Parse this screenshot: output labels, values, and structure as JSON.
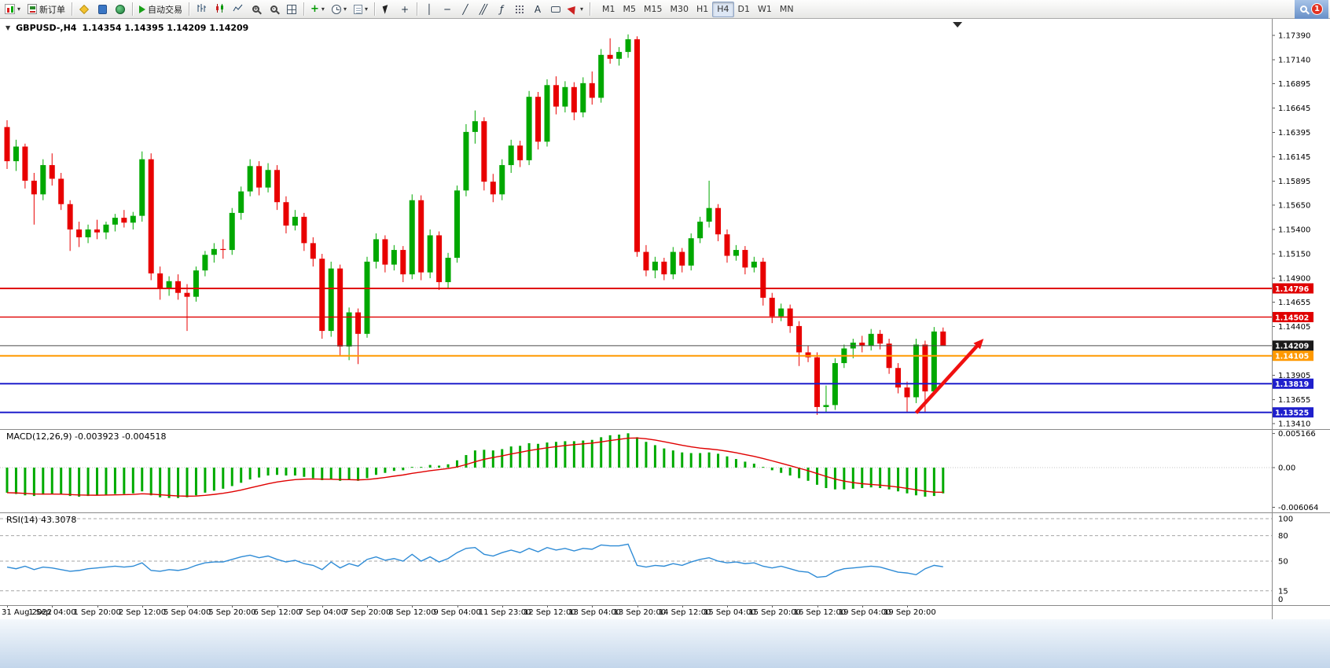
{
  "toolbar": {
    "new_order_label": "新订单",
    "autotrading_label": "自动交易",
    "timeframes": [
      "M1",
      "M5",
      "M15",
      "M30",
      "H1",
      "H4",
      "D1",
      "W1",
      "MN"
    ],
    "active_timeframe": "H4",
    "notification_count": "1",
    "dropdown_glyph": "▾",
    "vline_glyph": "│",
    "hline_glyph": "─",
    "trendline_glyph": "╱",
    "channel_glyph": "╱╱",
    "fibonacci_glyph": "ƒ",
    "crosshair_glyph": "+",
    "text_glyph": "A"
  },
  "chart": {
    "title": "GBPUSD-,H4",
    "ohlc": "1.14354 1.14395 1.14209 1.14209",
    "collapse_glyph": "▼"
  },
  "indicators": {
    "macd_label": "MACD(12,26,9) -0.003923 -0.004518",
    "rsi_label": "RSI(14) 43.3078"
  },
  "chart_data": [
    {
      "type": "candlestick",
      "symbol": "GBPUSD-",
      "timeframe": "H4",
      "current_bar": {
        "open": 1.14354,
        "high": 1.14395,
        "low": 1.14209,
        "close": 1.14209
      },
      "up_color": "#00A800",
      "down_color": "#E80000",
      "y_axis_labels": [
        "1.17390",
        "1.17140",
        "1.16895",
        "1.16645",
        "1.16395",
        "1.16145",
        "1.15895",
        "1.15650",
        "1.15400",
        "1.15150",
        "1.14900",
        "1.14655",
        "1.14405",
        "1.13905",
        "1.13655",
        "1.13410"
      ],
      "price_lines": [
        {
          "label": "1.14796",
          "price": 1.14796,
          "color": "#E00000",
          "width": 2
        },
        {
          "label": "1.14502",
          "price": 1.14502,
          "color": "#E00000",
          "width": 1.4
        },
        {
          "label": "1.14209",
          "price": 1.14209,
          "color": "#4a4a4a",
          "width": 1,
          "badge": "#1a1a1a"
        },
        {
          "label": "1.14105",
          "price": 1.14105,
          "color": "#FF9900",
          "width": 2
        },
        {
          "label": "1.13819",
          "price": 1.13819,
          "color": "#1F1FCC",
          "width": 2
        },
        {
          "label": "1.13525",
          "price": 1.13525,
          "color": "#1F1FCC",
          "width": 2
        }
      ],
      "time_axis_labels": [
        "31 Aug 2022",
        "1 Sep 04:00",
        "1 Sep 20:00",
        "2 Sep 12:00",
        "5 Sep 04:00",
        "5 Sep 20:00",
        "6 Sep 12:00",
        "7 Sep 04:00",
        "7 Sep 20:00",
        "8 Sep 12:00",
        "9 Sep 04:00",
        "11 Sep 23:00",
        "12 Sep 12:00",
        "13 Sep 04:00",
        "13 Sep 20:00",
        "14 Sep 12:00",
        "15 Sep 04:00",
        "15 Sep 20:00",
        "16 Sep 12:00",
        "19 Sep 04:00",
        "19 Sep 20:00"
      ],
      "arrow": {
        "from_bar": 101,
        "from_price": 1.1352,
        "to_bar": 108.5,
        "to_price": 1.1428,
        "color": "#F01010"
      },
      "shift_marker_bar": 105.6,
      "candles": [
        [
          1.1645,
          1.1652,
          1.1602,
          1.161
        ],
        [
          1.161,
          1.1632,
          1.16,
          1.1625
        ],
        [
          1.1625,
          1.1628,
          1.1582,
          1.159
        ],
        [
          1.159,
          1.1598,
          1.1545,
          1.1576
        ],
        [
          1.1576,
          1.1612,
          1.157,
          1.1606
        ],
        [
          1.1606,
          1.1618,
          1.1585,
          1.1592
        ],
        [
          1.1592,
          1.1598,
          1.156,
          1.1566
        ],
        [
          1.1566,
          1.157,
          1.1518,
          1.154
        ],
        [
          1.154,
          1.1548,
          1.1522,
          1.1532
        ],
        [
          1.1532,
          1.1545,
          1.1526,
          1.154
        ],
        [
          1.154,
          1.155,
          1.153,
          1.1537
        ],
        [
          1.1537,
          1.1548,
          1.153,
          1.1545
        ],
        [
          1.1545,
          1.1556,
          1.1538,
          1.1552
        ],
        [
          1.1552,
          1.156,
          1.1542,
          1.1547
        ],
        [
          1.1547,
          1.1558,
          1.154,
          1.1554
        ],
        [
          1.1554,
          1.162,
          1.1548,
          1.1612
        ],
        [
          1.1612,
          1.1618,
          1.1488,
          1.1495
        ],
        [
          1.1495,
          1.1502,
          1.1468,
          1.148
        ],
        [
          1.148,
          1.1492,
          1.1472,
          1.1487
        ],
        [
          1.1487,
          1.1494,
          1.1468,
          1.1475
        ],
        [
          1.1475,
          1.1484,
          1.1436,
          1.1471
        ],
        [
          1.1471,
          1.1502,
          1.1466,
          1.1498
        ],
        [
          1.1498,
          1.1518,
          1.1492,
          1.1514
        ],
        [
          1.1514,
          1.1526,
          1.1506,
          1.152
        ],
        [
          1.152,
          1.153,
          1.151,
          1.1519
        ],
        [
          1.1519,
          1.1562,
          1.1514,
          1.1557
        ],
        [
          1.1557,
          1.1584,
          1.155,
          1.1579
        ],
        [
          1.1579,
          1.1612,
          1.1574,
          1.1605
        ],
        [
          1.1605,
          1.161,
          1.1575,
          1.1583
        ],
        [
          1.1583,
          1.1608,
          1.1578,
          1.1601
        ],
        [
          1.1601,
          1.1606,
          1.156,
          1.1568
        ],
        [
          1.1568,
          1.1574,
          1.1536,
          1.1544
        ],
        [
          1.1544,
          1.156,
          1.1539,
          1.1553
        ],
        [
          1.1553,
          1.1557,
          1.1518,
          1.1526
        ],
        [
          1.1526,
          1.1532,
          1.1502,
          1.151
        ],
        [
          1.151,
          1.1515,
          1.1428,
          1.1436
        ],
        [
          1.1436,
          1.1507,
          1.143,
          1.15
        ],
        [
          1.15,
          1.1504,
          1.141,
          1.142
        ],
        [
          1.142,
          1.146,
          1.1406,
          1.1455
        ],
        [
          1.1455,
          1.1459,
          1.1402,
          1.1433
        ],
        [
          1.1433,
          1.1512,
          1.1429,
          1.1507
        ],
        [
          1.1507,
          1.1536,
          1.15,
          1.153
        ],
        [
          1.153,
          1.1534,
          1.1496,
          1.1504
        ],
        [
          1.1504,
          1.1524,
          1.1498,
          1.1519
        ],
        [
          1.1519,
          1.1523,
          1.1486,
          1.1494
        ],
        [
          1.1494,
          1.1576,
          1.1489,
          1.157
        ],
        [
          1.157,
          1.1575,
          1.1488,
          1.1496
        ],
        [
          1.1496,
          1.154,
          1.149,
          1.1534
        ],
        [
          1.1534,
          1.1538,
          1.1478,
          1.1486
        ],
        [
          1.1486,
          1.1516,
          1.148,
          1.1511
        ],
        [
          1.1511,
          1.1585,
          1.1506,
          1.158
        ],
        [
          1.158,
          1.1648,
          1.1574,
          1.164
        ],
        [
          1.164,
          1.1662,
          1.1628,
          1.1651
        ],
        [
          1.1651,
          1.1655,
          1.158,
          1.1589
        ],
        [
          1.1589,
          1.1597,
          1.1568,
          1.1576
        ],
        [
          1.1576,
          1.1612,
          1.157,
          1.1606
        ],
        [
          1.1606,
          1.1632,
          1.1598,
          1.1626
        ],
        [
          1.1626,
          1.1631,
          1.1604,
          1.1611
        ],
        [
          1.1611,
          1.1682,
          1.1606,
          1.1676
        ],
        [
          1.1676,
          1.1681,
          1.1622,
          1.163
        ],
        [
          1.163,
          1.1694,
          1.1625,
          1.1688
        ],
        [
          1.1688,
          1.1697,
          1.1658,
          1.1666
        ],
        [
          1.1666,
          1.1692,
          1.166,
          1.1686
        ],
        [
          1.1686,
          1.1691,
          1.1652,
          1.166
        ],
        [
          1.166,
          1.1696,
          1.1655,
          1.169
        ],
        [
          1.169,
          1.1702,
          1.1668,
          1.1675
        ],
        [
          1.1675,
          1.1725,
          1.167,
          1.1719
        ],
        [
          1.1719,
          1.1736,
          1.171,
          1.1715
        ],
        [
          1.1715,
          1.1727,
          1.1708,
          1.1722
        ],
        [
          1.1722,
          1.174,
          1.1716,
          1.1735
        ],
        [
          1.1735,
          1.1738,
          1.1512,
          1.1517
        ],
        [
          1.1517,
          1.1524,
          1.1492,
          1.1498
        ],
        [
          1.1498,
          1.1512,
          1.149,
          1.1507
        ],
        [
          1.1507,
          1.1511,
          1.1488,
          1.1494
        ],
        [
          1.1494,
          1.1522,
          1.1489,
          1.1517
        ],
        [
          1.1517,
          1.1521,
          1.1496,
          1.1503
        ],
        [
          1.1503,
          1.1536,
          1.1498,
          1.1531
        ],
        [
          1.1531,
          1.1553,
          1.1526,
          1.1548
        ],
        [
          1.1548,
          1.159,
          1.1542,
          1.1562
        ],
        [
          1.1562,
          1.1566,
          1.1528,
          1.1535
        ],
        [
          1.1535,
          1.154,
          1.1506,
          1.1513
        ],
        [
          1.1513,
          1.1524,
          1.1508,
          1.1519
        ],
        [
          1.1519,
          1.1523,
          1.1494,
          1.1501
        ],
        [
          1.1501,
          1.1512,
          1.1496,
          1.1507
        ],
        [
          1.1507,
          1.1511,
          1.1462,
          1.147
        ],
        [
          1.147,
          1.1475,
          1.1444,
          1.1451
        ],
        [
          1.1451,
          1.1464,
          1.1446,
          1.1459
        ],
        [
          1.1459,
          1.1463,
          1.1434,
          1.1441
        ],
        [
          1.1441,
          1.1446,
          1.14,
          1.1414
        ],
        [
          1.1414,
          1.1421,
          1.1404,
          1.1409
        ],
        [
          1.1409,
          1.1414,
          1.135,
          1.1358
        ],
        [
          1.1358,
          1.138,
          1.1352,
          1.136
        ],
        [
          1.136,
          1.1408,
          1.1355,
          1.1403
        ],
        [
          1.1403,
          1.1422,
          1.1398,
          1.1418
        ],
        [
          1.1418,
          1.1428,
          1.1408,
          1.1424
        ],
        [
          1.1424,
          1.1431,
          1.1414,
          1.1421
        ],
        [
          1.1421,
          1.1438,
          1.1416,
          1.1433
        ],
        [
          1.1433,
          1.1437,
          1.1417,
          1.1423
        ],
        [
          1.1423,
          1.1428,
          1.1392,
          1.1398
        ],
        [
          1.1398,
          1.1403,
          1.1372,
          1.1378
        ],
        [
          1.1378,
          1.1384,
          1.1352,
          1.1368
        ],
        [
          1.1368,
          1.1428,
          1.1362,
          1.1422
        ],
        [
          1.1422,
          1.1426,
          1.1352,
          1.1374
        ],
        [
          1.1374,
          1.144,
          1.137,
          1.14354
        ],
        [
          1.14354,
          1.14395,
          1.14209,
          1.14209
        ]
      ]
    },
    {
      "type": "bar",
      "name": "MACD(12,26,9)",
      "current_values": [
        -0.003923,
        -0.004518
      ],
      "color": "#00AA00",
      "signal_color": "#E00000",
      "axis_labels": [
        "0.005166",
        "0.00",
        "-0.006064"
      ],
      "values": [
        -0.0038,
        -0.004,
        -0.0042,
        -0.0043,
        -0.0041,
        -0.004,
        -0.0041,
        -0.0043,
        -0.0044,
        -0.0043,
        -0.0042,
        -0.0041,
        -0.004,
        -0.004,
        -0.0039,
        -0.0036,
        -0.0042,
        -0.0045,
        -0.0046,
        -0.0046,
        -0.0045,
        -0.0042,
        -0.0038,
        -0.0035,
        -0.0032,
        -0.0028,
        -0.0023,
        -0.0018,
        -0.0015,
        -0.0012,
        -0.0011,
        -0.0012,
        -0.0012,
        -0.0014,
        -0.0016,
        -0.0019,
        -0.0018,
        -0.002,
        -0.0019,
        -0.002,
        -0.0016,
        -0.0011,
        -0.0008,
        -0.0005,
        -0.0004,
        0.0001,
        0.0001,
        0.0004,
        0.0003,
        0.0005,
        0.0011,
        0.0019,
        0.0026,
        0.0027,
        0.0026,
        0.0028,
        0.0032,
        0.0033,
        0.0037,
        0.0036,
        0.0038,
        0.0039,
        0.004,
        0.004,
        0.0041,
        0.0042,
        0.0046,
        0.0049,
        0.005,
        0.0052,
        0.0046,
        0.0039,
        0.0034,
        0.0029,
        0.0026,
        0.0023,
        0.0022,
        0.0022,
        0.0023,
        0.0021,
        0.0017,
        0.0013,
        0.0009,
        0.0006,
        0.0001,
        -0.0004,
        -0.0008,
        -0.0012,
        -0.0016,
        -0.002,
        -0.0026,
        -0.0031,
        -0.0033,
        -0.0033,
        -0.0032,
        -0.0031,
        -0.003,
        -0.0031,
        -0.0033,
        -0.0036,
        -0.0039,
        -0.0042,
        -0.0044,
        -0.0043,
        -0.0039
      ]
    },
    {
      "type": "line",
      "name": "RSI(14)",
      "current_value": 43.3078,
      "color": "#2E8BD6",
      "levels": [
        100,
        80,
        50,
        15,
        0
      ],
      "values": [
        43,
        41,
        44,
        40,
        43,
        42,
        40,
        38,
        39,
        41,
        42,
        43,
        44,
        43,
        44,
        48,
        39,
        38,
        40,
        39,
        41,
        45,
        48,
        49,
        49,
        52,
        55,
        57,
        54,
        56,
        52,
        49,
        51,
        47,
        45,
        40,
        49,
        42,
        47,
        44,
        52,
        55,
        51,
        53,
        50,
        58,
        50,
        55,
        49,
        53,
        60,
        65,
        66,
        58,
        56,
        60,
        63,
        60,
        65,
        61,
        66,
        63,
        65,
        62,
        65,
        64,
        69,
        68,
        68,
        70,
        45,
        43,
        45,
        44,
        47,
        45,
        49,
        52,
        54,
        50,
        48,
        49,
        47,
        48,
        44,
        42,
        44,
        41,
        38,
        37,
        31,
        32,
        38,
        41,
        42,
        43,
        44,
        43,
        40,
        37,
        36,
        34,
        41,
        45,
        43.3
      ]
    }
  ]
}
